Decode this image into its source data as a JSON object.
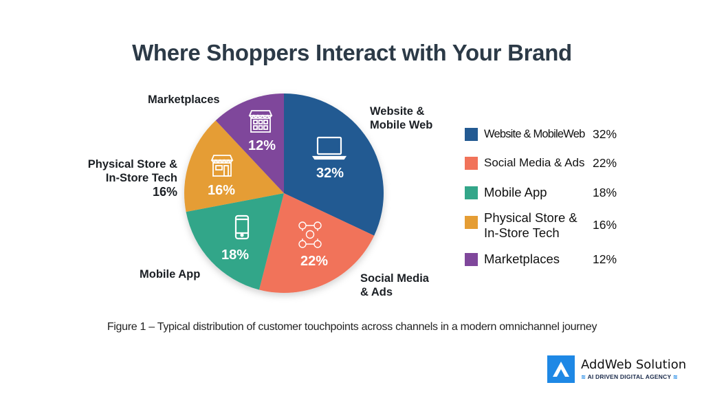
{
  "title": "Where Shoppers Interact with Your Brand",
  "caption": "Figure 1 – Typical distribution of customer touchpoints across channels in a modern omnichannel journey",
  "callouts": {
    "website": [
      "Website &",
      "Mobile Web"
    ],
    "social": [
      "Social Media",
      "& Ads"
    ],
    "mobile_app": [
      "Mobile App"
    ],
    "physical": [
      "Physical Store &",
      "In-Store Tech",
      "16%"
    ],
    "marketplaces": [
      "Marketplaces"
    ]
  },
  "legend": [
    {
      "label": "Website & MobileWeb",
      "value": "32%",
      "color": "#235a92"
    },
    {
      "label": "Social Media & Ads",
      "value": "22%",
      "color": "#f1735a"
    },
    {
      "label": "Mobile App",
      "value": "18%",
      "color": "#33a689"
    },
    {
      "label": "Physical Store & In-Store Tech",
      "label_lines": [
        "Physical Store &",
        "In-Store Tech"
      ],
      "value": "16%",
      "color": "#e59d34"
    },
    {
      "label": "Marketplaces",
      "value": "12%",
      "color": "#7f479b"
    }
  ],
  "brand": {
    "name": "AddWeb Solution",
    "tagline": "AI DRIVEN DIGITAL AGENCY",
    "color": "#1e88e5"
  },
  "chart_data": {
    "type": "pie",
    "title": "Where Shoppers Interact with Your Brand",
    "subtitle": "Figure 1 – Typical distribution of customer touchpoints across channels in a modern omnichannel journey",
    "categories": [
      "Website & Mobile Web",
      "Social Media & Ads",
      "Mobile App",
      "Physical Store & In-Store Tech",
      "Marketplaces"
    ],
    "values": [
      32,
      22,
      18,
      16,
      12
    ],
    "value_labels": [
      "32%",
      "22%",
      "18%",
      "16%",
      "12%"
    ],
    "colors": [
      "#235a92",
      "#f1735a",
      "#33a689",
      "#e59d34",
      "#7f479b"
    ],
    "slice_icons": [
      "laptop-icon",
      "social-media-icon",
      "smartphone-icon",
      "storefront-icon",
      "marketplace-icon"
    ],
    "start_angle": "12 o'clock",
    "direction": "clockwise",
    "legend_position": "right",
    "grid": false
  }
}
